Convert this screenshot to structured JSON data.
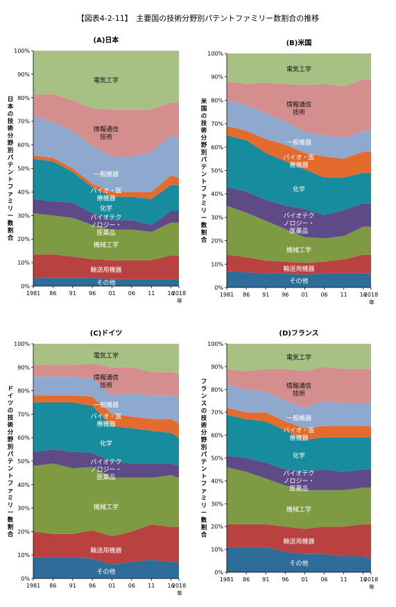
{
  "figure_title": "【図表4-2-11】　主要国の技術分野別パテントファミリー数割合の推移",
  "colors": {
    "その他": "#2e6c99",
    "輸送用機器": "#b94140",
    "機械工学": "#7e9a42",
    "バイオテクノロジー・医薬品": "#5e4a86",
    "化学": "#178c9f",
    "バイオ・医療機器": "#e36b2e",
    "一般機器": "#8fa8cd",
    "情報通信技術": "#d58e8e",
    "電気工学": "#a7c185"
  },
  "chart_data": [
    {
      "type": "area",
      "title": "(A)日本",
      "ylabel": "日本の技術分野別パテントファミリー数割合",
      "xtick_labels": [
        "1981",
        "86",
        "91",
        "96",
        "01",
        "06",
        "11",
        "16",
        "2018"
      ],
      "x_unit_label": "年",
      "ytick_labels": [
        "0%",
        "10%",
        "20%",
        "30%",
        "40%",
        "50%",
        "60%",
        "70%",
        "80%",
        "90%",
        "100%"
      ],
      "ylim": [
        0,
        100
      ],
      "grid": false,
      "x": [
        1981,
        1986,
        1991,
        1996,
        2001,
        2006,
        2011,
        2016,
        2018
      ],
      "series": [
        {
          "name": "その他",
          "label": "その他",
          "values": [
            3.5,
            3.5,
            3.5,
            3.5,
            3,
            3,
            3,
            3,
            3
          ]
        },
        {
          "name": "輸送用機器",
          "label": "輸送用機器",
          "values": [
            10,
            10,
            9,
            8,
            8,
            8,
            8,
            10,
            10
          ]
        },
        {
          "name": "機械工学",
          "label": "機械工学",
          "values": [
            17.5,
            16.5,
            16.5,
            14.5,
            13,
            13,
            12,
            14,
            14
          ]
        },
        {
          "name": "バイオテクノロジー・医薬品",
          "label": "バイオテクノロジー・医薬品",
          "values": [
            6,
            6,
            6.5,
            5,
            4,
            4,
            3,
            5,
            5
          ]
        },
        {
          "name": "化学",
          "label": "化学",
          "values": [
            17,
            17,
            13,
            11,
            10,
            10,
            11,
            11,
            11
          ]
        },
        {
          "name": "バイオ・医療機器",
          "label": "バイオ・医療機器",
          "values": [
            1.5,
            1.5,
            1.5,
            1.5,
            2,
            2,
            3,
            4,
            3
          ]
        },
        {
          "name": "一般機器",
          "label": "一般機器",
          "values": [
            17,
            15,
            16,
            16,
            15,
            15,
            17,
            17,
            17
          ]
        },
        {
          "name": "情報通信技術",
          "label": "情報通信技術",
          "values": [
            9,
            12,
            13,
            16,
            20,
            20,
            18,
            14,
            15
          ]
        },
        {
          "name": "電気工学",
          "label": "電気工学",
          "values": [
            18.5,
            18.5,
            21,
            24.5,
            25,
            25,
            25,
            22,
            22
          ]
        }
      ]
    },
    {
      "type": "area",
      "title": "(B)米国",
      "ylabel": "米国の技術分野別パテントファミリー数割合",
      "xtick_labels": [
        "1981",
        "86",
        "91",
        "96",
        "01",
        "06",
        "11",
        "16",
        "2018"
      ],
      "x_unit_label": "年",
      "ytick_labels": [
        "0%",
        "10%",
        "20%",
        "30%",
        "40%",
        "50%",
        "60%",
        "70%",
        "80%",
        "90%",
        "100%"
      ],
      "ylim": [
        0,
        100
      ],
      "grid": false,
      "x": [
        1981,
        1986,
        1991,
        1996,
        2001,
        2006,
        2011,
        2016,
        2018
      ],
      "series": [
        {
          "name": "その他",
          "label": "その他",
          "values": [
            7,
            6.5,
            6,
            6,
            5.5,
            6,
            6,
            6,
            6
          ]
        },
        {
          "name": "輸送用機器",
          "label": "輸送用機器",
          "values": [
            7,
            6.5,
            5.5,
            5,
            5,
            5,
            6,
            8,
            8
          ]
        },
        {
          "name": "機械工学",
          "label": "機械工学",
          "values": [
            21,
            19,
            17,
            14,
            11,
            10,
            10,
            12,
            12
          ]
        },
        {
          "name": "バイオテクノロジー・医薬品",
          "label": "バイオテクノロジー・医薬品",
          "values": [
            8,
            9,
            9,
            10,
            12,
            10,
            11,
            10,
            10
          ]
        },
        {
          "name": "化学",
          "label": "化学",
          "values": [
            22,
            22,
            20,
            19,
            17,
            16,
            14,
            13,
            13
          ]
        },
        {
          "name": "バイオ・医療機器",
          "label": "バイオ・医療機器",
          "values": [
            4,
            4,
            6,
            7,
            7,
            9,
            8,
            9,
            9
          ]
        },
        {
          "name": "一般機器",
          "label": "一般機器",
          "values": [
            11,
            11,
            11,
            10,
            9,
            9,
            9,
            9,
            9
          ]
        },
        {
          "name": "情報通信技術",
          "label": "情報通信技術",
          "values": [
            8,
            9,
            13,
            16,
            20,
            22,
            22,
            22,
            22
          ]
        },
        {
          "name": "電気工学",
          "label": "電気工学",
          "values": [
            12,
            13,
            12.5,
            13,
            13.5,
            13,
            14,
            11,
            11
          ]
        }
      ]
    },
    {
      "type": "area",
      "title": "(C)ドイツ",
      "ylabel": "ドイツの技術分野別パテントファミリー数割合",
      "xtick_labels": [
        "1981",
        "86",
        "91",
        "96",
        "01",
        "06",
        "11",
        "16",
        "2018"
      ],
      "x_unit_label": "年",
      "ytick_labels": [
        "0%",
        "10%",
        "20%",
        "30%",
        "40%",
        "50%",
        "60%",
        "70%",
        "80%",
        "90%",
        "100%"
      ],
      "ylim": [
        0,
        100
      ],
      "grid": false,
      "x": [
        1981,
        1986,
        1991,
        1996,
        2001,
        2006,
        2011,
        2016,
        2018
      ],
      "series": [
        {
          "name": "その他",
          "label": "その他",
          "values": [
            9,
            9,
            9,
            8.5,
            6,
            7,
            8,
            7,
            7
          ]
        },
        {
          "name": "輸送用機器",
          "label": "輸送用機器",
          "values": [
            11,
            10,
            10,
            12,
            12,
            13,
            15,
            15,
            15
          ]
        },
        {
          "name": "機械工学",
          "label": "機械工学",
          "values": [
            28,
            30,
            28,
            27,
            25,
            23,
            20,
            22,
            21
          ]
        },
        {
          "name": "バイオテクノロジー・医薬品",
          "label": "バイオテクノロジー・医薬品",
          "values": [
            6,
            6,
            7,
            6,
            7,
            6,
            6,
            5,
            5
          ]
        },
        {
          "name": "化学",
          "label": "化学",
          "values": [
            21,
            20,
            21,
            20,
            15,
            15,
            14,
            13,
            12
          ]
        },
        {
          "name": "バイオ・医療機器",
          "label": "バイオ・医療機器",
          "values": [
            3,
            3,
            3,
            4,
            5,
            5,
            5,
            6,
            6
          ]
        },
        {
          "name": "一般機器",
          "label": "一般機器",
          "values": [
            8,
            8,
            8,
            8,
            8,
            10,
            10,
            10,
            11
          ]
        },
        {
          "name": "情報通信技術",
          "label": "情報通信技術",
          "values": [
            5,
            5,
            5,
            6,
            12,
            11,
            10,
            10,
            10
          ]
        },
        {
          "name": "電気工学",
          "label": "電気工学",
          "values": [
            9,
            9,
            9,
            8.5,
            10,
            10,
            12,
            12,
            13
          ]
        }
      ]
    },
    {
      "type": "area",
      "title": "(D)フランス",
      "ylabel": "フランスの技術分野別パテントファミリー数割合",
      "xtick_labels": [
        "1981",
        "86",
        "91",
        "96",
        "01",
        "06",
        "11",
        "16",
        "2018"
      ],
      "x_unit_label": "年",
      "ytick_labels": [
        "0%",
        "10%",
        "20%",
        "30%",
        "40%",
        "50%",
        "60%",
        "70%",
        "80%",
        "90%",
        "100%"
      ],
      "ylim": [
        0,
        100
      ],
      "grid": false,
      "x": [
        1981,
        1986,
        1991,
        1996,
        2001,
        2006,
        2011,
        2016,
        2018
      ],
      "series": [
        {
          "name": "その他",
          "label": "その他",
          "values": [
            11,
            11,
            11,
            9,
            8,
            8,
            7,
            7,
            6
          ]
        },
        {
          "name": "輸送用機器",
          "label": "輸送用機器",
          "values": [
            10,
            10,
            10,
            11,
            11,
            12,
            13,
            14,
            15
          ]
        },
        {
          "name": "機械工学",
          "label": "機械工学",
          "values": [
            25,
            23,
            20,
            18,
            17,
            16,
            16,
            16,
            16
          ]
        },
        {
          "name": "バイオテクノロジー・医薬品",
          "label": "バイオテクノロジー・医薬品",
          "values": [
            5,
            6,
            7,
            7,
            8,
            9,
            8,
            8,
            8
          ]
        },
        {
          "name": "化学",
          "label": "化学",
          "values": [
            18,
            17,
            18,
            17,
            14,
            14,
            15,
            14,
            14
          ]
        },
        {
          "name": "バイオ・医療機器",
          "label": "バイオ・医療機器",
          "values": [
            3,
            3,
            4,
            4,
            5,
            5,
            5,
            5,
            5
          ]
        },
        {
          "name": "一般機器",
          "label": "一般機器",
          "values": [
            10,
            10,
            9,
            9,
            9,
            11,
            10,
            10,
            10
          ]
        },
        {
          "name": "情報通信技術",
          "label": "情報通信技術",
          "values": [
            7,
            8,
            10,
            14,
            16,
            15,
            15,
            15,
            15
          ]
        },
        {
          "name": "電気工学",
          "label": "電気工学",
          "values": [
            11,
            12,
            11,
            11,
            12,
            10,
            11,
            11,
            11
          ]
        }
      ]
    }
  ]
}
